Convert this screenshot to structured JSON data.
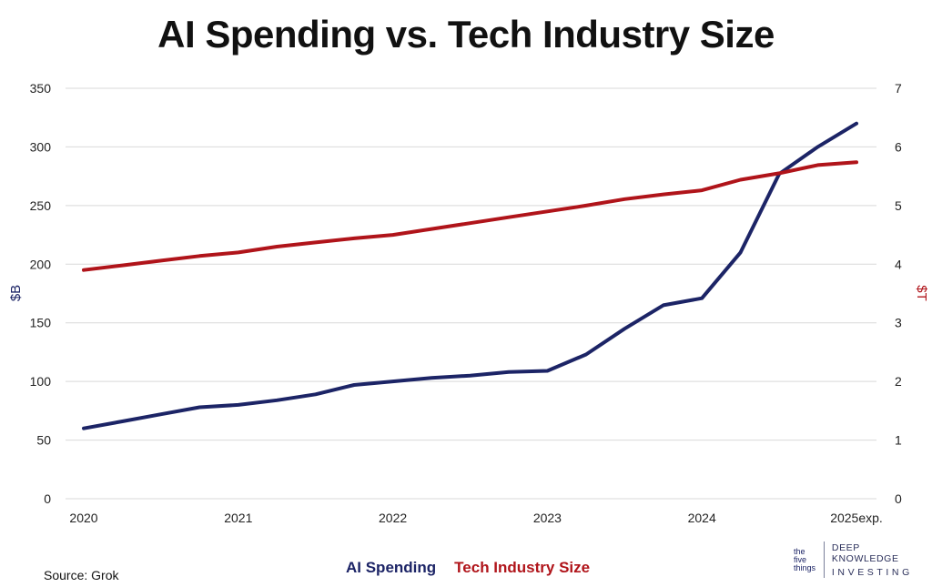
{
  "header": {
    "title": "AI Spending vs. Tech Industry Size"
  },
  "footer": {
    "source": "Source: Grok",
    "logo": {
      "mark_lines": [
        "the",
        "five",
        "things"
      ],
      "line1": "DEEP KNOWLEDGE",
      "line2": "INVESTING"
    }
  },
  "colors": {
    "ai": "#1c2466",
    "tech": "#b0141a",
    "grid": "#d9d9d9"
  },
  "chart_data": {
    "type": "line",
    "title": "AI Spending vs. Tech Industry Size",
    "categories": [
      "2020",
      "2021",
      "2022",
      "2023",
      "2024",
      "2025exp."
    ],
    "x": [
      0,
      0.25,
      0.5,
      0.75,
      1,
      1.25,
      1.5,
      1.75,
      2,
      2.25,
      2.5,
      2.75,
      3,
      3.25,
      3.5,
      3.75,
      4,
      4.25,
      4.5,
      4.75,
      5
    ],
    "y_left": {
      "label": "$B",
      "ylim": [
        0,
        350
      ],
      "ticks": [
        0,
        50,
        100,
        150,
        200,
        250,
        300,
        350
      ]
    },
    "y_right": {
      "label": "$T",
      "ylim": [
        0,
        7
      ],
      "ticks": [
        0,
        1,
        2,
        3,
        4,
        5,
        6,
        7
      ]
    },
    "grid": true,
    "legend": "bottom-center",
    "series": [
      {
        "name": "AI Spending",
        "axis": "left",
        "values": [
          60,
          66,
          72,
          78,
          80,
          84,
          89,
          97,
          100,
          103,
          105,
          108,
          109,
          123,
          145,
          165,
          171,
          210,
          277,
          300,
          320
        ]
      },
      {
        "name": "Tech Industry Size",
        "axis": "right",
        "values": [
          3.9,
          3.98,
          4.06,
          4.14,
          4.2,
          4.3,
          4.37,
          4.44,
          4.5,
          4.6,
          4.7,
          4.8,
          4.9,
          5.0,
          5.11,
          5.19,
          5.26,
          5.44,
          5.55,
          5.69,
          5.74
        ]
      }
    ]
  }
}
